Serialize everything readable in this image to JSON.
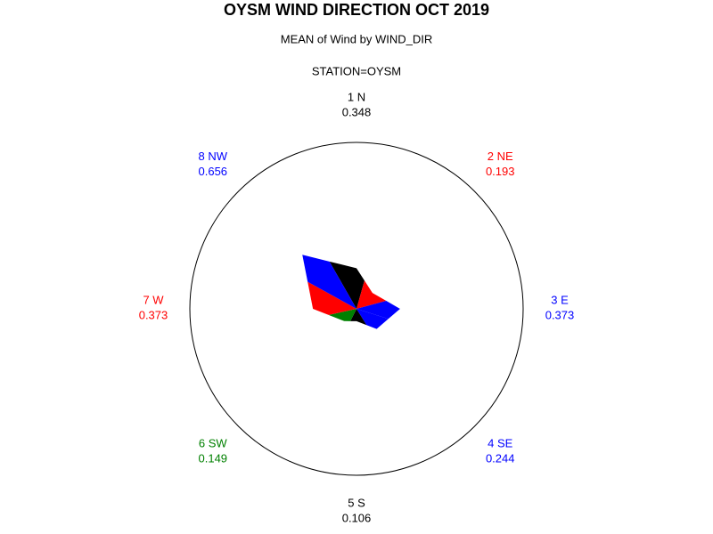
{
  "chart_data": {
    "type": "star",
    "title": "OYSM WIND DIRECTION OCT 2019",
    "subtitle": "MEAN of Wind by WIND_DIR",
    "by_group": "STATION=OYSM",
    "categories": [
      "1 N",
      "2 NE",
      "3 E",
      "4 SE",
      "5 S",
      "6 SW",
      "7 W",
      "8 NW"
    ],
    "values": [
      0.348,
      0.193,
      0.373,
      0.244,
      0.106,
      0.149,
      0.373,
      0.656
    ],
    "colors": [
      "#000000",
      "#ff0000",
      "#0000ff",
      "#0000ff",
      "#000000",
      "#008000",
      "#ff0000",
      "#0000ff"
    ]
  }
}
